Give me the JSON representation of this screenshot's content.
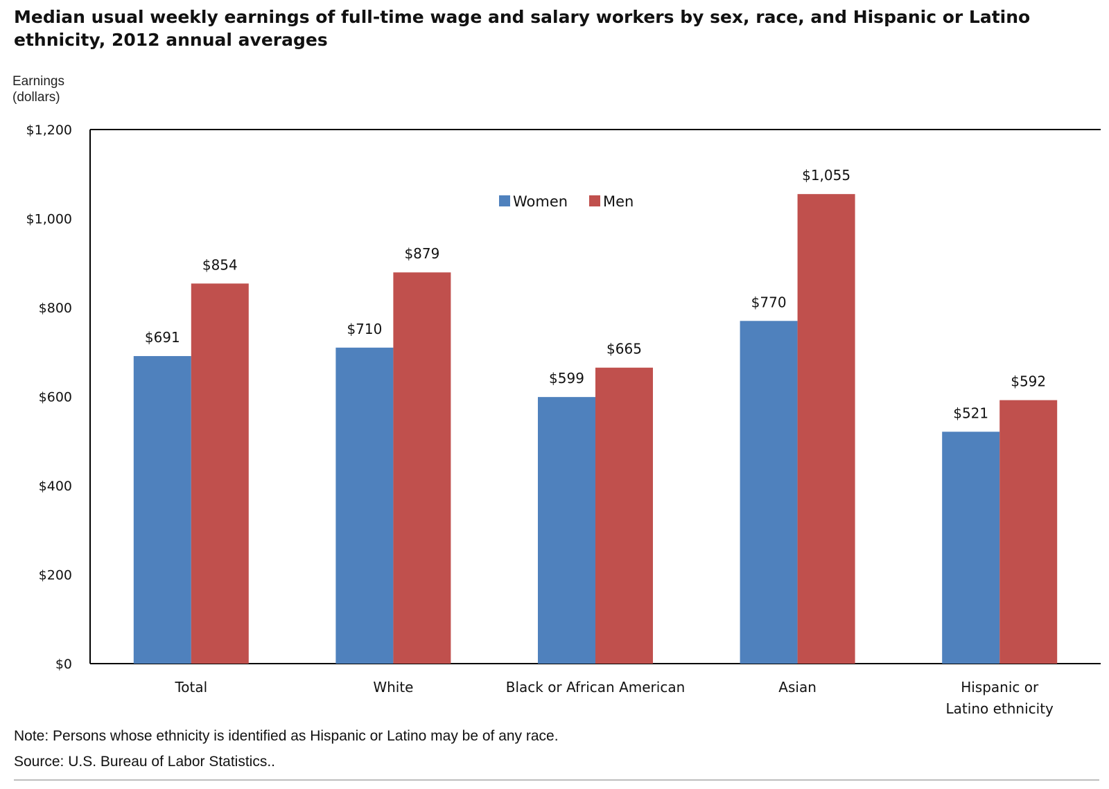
{
  "colors": {
    "women": "#4f81bd",
    "men": "#c0504d",
    "axis": "#000000"
  },
  "footer": {
    "note": "Note: Persons whose ethnicity is identified as Hispanic or Latino may be of any race.",
    "source": "Source: U.S. Bureau of Labor Statistics.."
  },
  "chart_data": {
    "type": "bar",
    "title": "Median usual weekly earnings of full-time wage and salary workers by sex, race, and Hispanic or Latino ethnicity, 2012 annual averages",
    "ylabel": "Earnings (dollars)",
    "xlabel": "",
    "categories": [
      "Total",
      "White",
      "Black or African American",
      "Asian",
      "Hispanic or Latino ethnicity"
    ],
    "series": [
      {
        "name": "Women",
        "values": [
          691,
          710,
          599,
          770,
          521
        ],
        "labels": [
          "$691",
          "$710",
          "$599",
          "$770",
          "$521"
        ]
      },
      {
        "name": "Men",
        "values": [
          854,
          879,
          665,
          1055,
          592
        ],
        "labels": [
          "$854",
          "$879",
          "$665",
          "$1,055",
          "$592"
        ]
      }
    ],
    "ylim": [
      0,
      1200
    ],
    "yticks": [
      0,
      200,
      400,
      600,
      800,
      1000,
      1200
    ],
    "ytick_labels": [
      "$0",
      "$200",
      "$400",
      "$600",
      "$800",
      "$1,000",
      "$1,200"
    ],
    "grid": false,
    "legend": "top-center"
  }
}
